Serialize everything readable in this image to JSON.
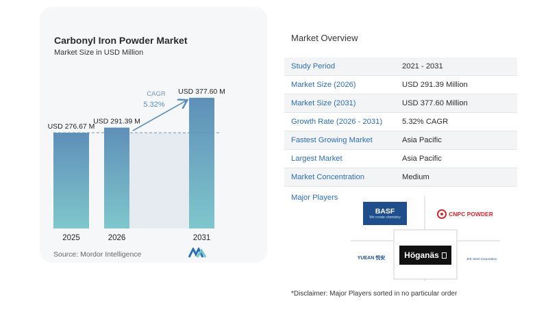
{
  "chart": {
    "title": "Carbonyl Iron Powder Market",
    "subtitle": "Market Size in USD Million",
    "source": "Source:  Mordor Intelligence",
    "cagr_label": "CAGR",
    "cagr_value": "5.32%"
  },
  "chart_data": {
    "type": "bar",
    "title": "Carbonyl Iron Powder Market",
    "subtitle": "Market Size in USD Million",
    "categories": [
      "2025",
      "2026",
      "2031"
    ],
    "values": [
      276.67,
      291.39,
      377.6
    ],
    "value_labels": [
      "USD 276.67 M",
      "USD 291.39 M",
      "USD 377.60 M"
    ],
    "annotation": "CAGR 5.32%",
    "reference_line": 276.67,
    "ylim": [
      0,
      400
    ],
    "grid": false,
    "colors": {
      "bar_top": "#5e8fb8",
      "bar_bottom": "#7fc7cc",
      "projection_area": "#e6eaf1",
      "arrow": "#5e8fb8",
      "cagr_text": "#5e8fb8"
    }
  },
  "overview": {
    "title": "Market Overview",
    "rows": [
      {
        "label": "Study Period",
        "value": "2021 - 2031"
      },
      {
        "label": "Market Size (2026)",
        "value": "USD 291.39 Million"
      },
      {
        "label": "Market Size (2031)",
        "value": "USD 377.60 Million"
      },
      {
        "label": "Growth Rate (2026 - 2031)",
        "value": "5.32% CAGR"
      },
      {
        "label": "Fastest Growing Market",
        "value": "Asia Pacific"
      },
      {
        "label": "Largest Market",
        "value": "Asia Pacific"
      },
      {
        "label": "Market Concentration",
        "value": "Medium"
      }
    ]
  },
  "players": {
    "title": "Major Players",
    "basf": {
      "name": "BASF",
      "tagline": "We create chemistry"
    },
    "cnpc": "CNPC POWDER",
    "yuean": "YUEAN 悦安",
    "hoganas": "Höganäs",
    "jfe": "JFE Steel Corporation"
  },
  "disclaimer": "*Disclaimer: Major Players sorted in no particular order",
  "accent": "#2c6db3"
}
